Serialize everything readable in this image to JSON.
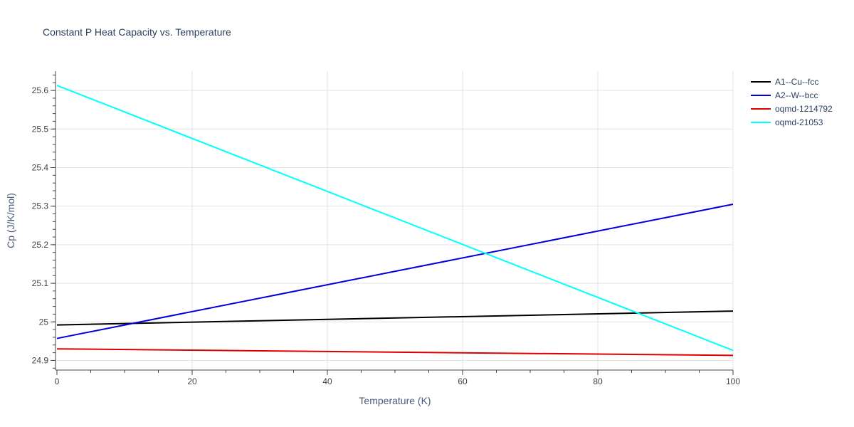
{
  "chart_data": {
    "type": "line",
    "title": "Constant P Heat Capacity vs. Temperature",
    "xlabel": "Temperature (K)",
    "ylabel": "Cp (J/K/mol)",
    "xlim": [
      0,
      100
    ],
    "ylim": [
      24.875,
      25.65
    ],
    "x_ticks": [
      0,
      20,
      40,
      60,
      80,
      100
    ],
    "y_ticks": [
      24.9,
      25.0,
      25.1,
      25.2,
      25.3,
      25.4,
      25.5,
      25.6
    ],
    "x_tick_labels": [
      "0",
      "20",
      "40",
      "60",
      "80",
      "100"
    ],
    "y_tick_labels": [
      "24.9",
      "25",
      "25.1",
      "25.2",
      "25.3",
      "25.4",
      "25.5",
      "25.6"
    ],
    "grid": true,
    "legend_position": "top-right",
    "x": [
      0,
      100
    ],
    "series": [
      {
        "name": "A1--Cu--fcc",
        "color": "#000000",
        "values": [
          24.992,
          25.028
        ]
      },
      {
        "name": "A2--W--bcc",
        "color": "#0000dd",
        "values": [
          24.957,
          25.305
        ]
      },
      {
        "name": "oqmd-1214792",
        "color": "#dd0000",
        "values": [
          24.93,
          24.913
        ]
      },
      {
        "name": "oqmd-21053",
        "color": "#00ffff",
        "values": [
          25.613,
          24.926
        ]
      }
    ]
  }
}
